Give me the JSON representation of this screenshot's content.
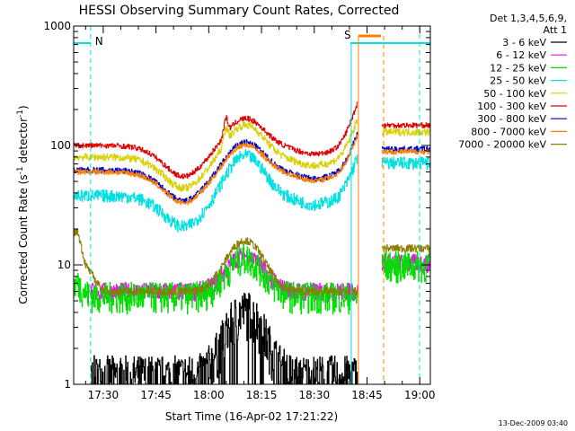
{
  "chart_data": {
    "type": "line",
    "title": "HESSI Observing Summary Count Rates, Corrected",
    "xlabel": "Start Time (16-Apr-02 17:21:22)",
    "ylabel_main": "Corrected Count Rate (s",
    "ylabel_sup1": "-1",
    "ylabel_mid": " detector",
    "ylabel_sup2": "-1",
    "ylabel_end": ")",
    "y_scale": "log",
    "ylim": [
      1,
      1000
    ],
    "xlim_minutes": [
      17.36,
      19.05
    ],
    "x_tick_labels": [
      "17:30",
      "17:45",
      "18:00",
      "18:15",
      "18:30",
      "18:45",
      "19:00"
    ],
    "y_tick_labels": [
      "1",
      "10",
      "100",
      "1000"
    ],
    "legend": {
      "header_line1": "Det 1,3,4,5,6,9,",
      "header_line2": "Att 1",
      "placement": "right"
    },
    "series": [
      {
        "name": "3 - 6 keV",
        "color": "#000000"
      },
      {
        "name": "6 - 12 keV",
        "color": "#ff00ff"
      },
      {
        "name": "12 - 25 keV",
        "color": "#00dd00"
      },
      {
        "name": "25 - 50 keV",
        "color": "#00e0e0"
      },
      {
        "name": "50 - 100 keV",
        "color": "#d8d000"
      },
      {
        "name": "100 - 300 keV",
        "color": "#e00000"
      },
      {
        "name": "300 - 800 keV",
        "color": "#0000c0"
      },
      {
        "name": "800 - 7000 keV",
        "color": "#ff7f00"
      },
      {
        "name": "7000 - 20000 keV",
        "color": "#8b7d00"
      }
    ],
    "annotations": [
      {
        "text": "N",
        "color": "#00e0e0"
      },
      {
        "text": "S",
        "color": "#ff7f00"
      }
    ],
    "stamp": "13-Dec-2009 03:40"
  }
}
